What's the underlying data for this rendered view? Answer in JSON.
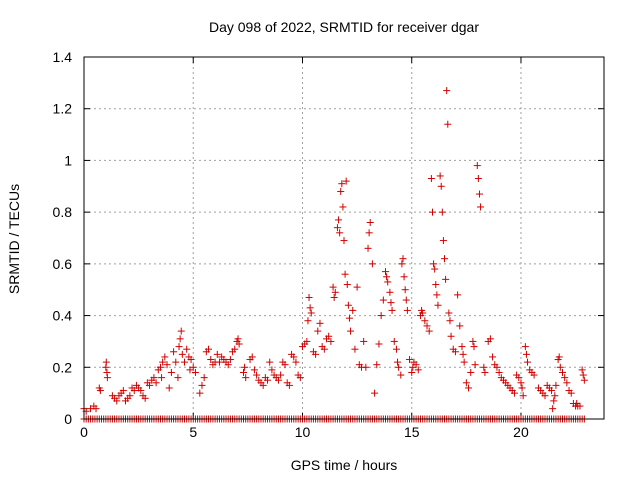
{
  "chart_data": {
    "type": "scatter",
    "title": "Day 098 of 2022, SRMTID for receiver dgar",
    "xlabel": "GPS time / hours",
    "ylabel": "SRMTID / TECUs",
    "xlim": [
      0,
      23.8
    ],
    "ylim": [
      0,
      1.4
    ],
    "xticks": [
      0,
      5,
      10,
      15,
      20
    ],
    "yticks": [
      0,
      0.2,
      0.4,
      0.6,
      0.8,
      1,
      1.2,
      1.4
    ],
    "xtick_labels": [
      "0",
      "5",
      "10",
      "15",
      "20"
    ],
    "ytick_labels": [
      "0",
      "0.2",
      "0.4",
      "0.6",
      "0.8",
      "1",
      "1.2",
      "1.4"
    ],
    "marker": "+",
    "color": "#d00000",
    "grid": true,
    "series": [
      {
        "name": "SRMTID",
        "points": [
          [
            0.0,
            0.04
          ],
          [
            0.1,
            0.03
          ],
          [
            0.3,
            0.04
          ],
          [
            0.45,
            0.05
          ],
          [
            0.55,
            0.04
          ],
          [
            0.7,
            0.12
          ],
          [
            0.75,
            0.11
          ],
          [
            1.0,
            0.2
          ],
          [
            1.02,
            0.22
          ],
          [
            1.05,
            0.18
          ],
          [
            1.07,
            0.16
          ],
          [
            1.3,
            0.09
          ],
          [
            1.4,
            0.08
          ],
          [
            1.5,
            0.07
          ],
          [
            1.6,
            0.09
          ],
          [
            1.7,
            0.1
          ],
          [
            1.8,
            0.11
          ],
          [
            1.9,
            0.07
          ],
          [
            2.0,
            0.08
          ],
          [
            2.1,
            0.09
          ],
          [
            2.2,
            0.12
          ],
          [
            2.3,
            0.11
          ],
          [
            2.4,
            0.13
          ],
          [
            2.5,
            0.12
          ],
          [
            2.6,
            0.11
          ],
          [
            2.7,
            0.09
          ],
          [
            2.8,
            0.08
          ],
          [
            2.9,
            0.14
          ],
          [
            3.0,
            0.13
          ],
          [
            3.1,
            0.15
          ],
          [
            3.2,
            0.16
          ],
          [
            3.3,
            0.14
          ],
          [
            3.4,
            0.19
          ],
          [
            3.5,
            0.2
          ],
          [
            3.55,
            0.16
          ],
          [
            3.6,
            0.22
          ],
          [
            3.7,
            0.24
          ],
          [
            3.8,
            0.21
          ],
          [
            3.9,
            0.12
          ],
          [
            4.0,
            0.18
          ],
          [
            4.1,
            0.26
          ],
          [
            4.2,
            0.22
          ],
          [
            4.3,
            0.16
          ],
          [
            4.35,
            0.28
          ],
          [
            4.4,
            0.31
          ],
          [
            4.45,
            0.34
          ],
          [
            4.5,
            0.25
          ],
          [
            4.6,
            0.22
          ],
          [
            4.7,
            0.27
          ],
          [
            4.8,
            0.24
          ],
          [
            4.85,
            0.19
          ],
          [
            4.9,
            0.23
          ],
          [
            5.0,
            0.2
          ],
          [
            5.1,
            0.18
          ],
          [
            5.3,
            0.1
          ],
          [
            5.4,
            0.13
          ],
          [
            5.5,
            0.16
          ],
          [
            5.6,
            0.26
          ],
          [
            5.7,
            0.27
          ],
          [
            5.8,
            0.23
          ],
          [
            5.9,
            0.21
          ],
          [
            6.0,
            0.22
          ],
          [
            6.1,
            0.25
          ],
          [
            6.2,
            0.22
          ],
          [
            6.3,
            0.24
          ],
          [
            6.4,
            0.23
          ],
          [
            6.5,
            0.22
          ],
          [
            6.6,
            0.21
          ],
          [
            6.7,
            0.23
          ],
          [
            6.8,
            0.26
          ],
          [
            6.9,
            0.27
          ],
          [
            7.0,
            0.3
          ],
          [
            7.05,
            0.31
          ],
          [
            7.1,
            0.29
          ],
          [
            7.3,
            0.18
          ],
          [
            7.35,
            0.2
          ],
          [
            7.4,
            0.16
          ],
          [
            7.6,
            0.23
          ],
          [
            7.7,
            0.24
          ],
          [
            7.8,
            0.19
          ],
          [
            7.9,
            0.17
          ],
          [
            8.0,
            0.15
          ],
          [
            8.1,
            0.14
          ],
          [
            8.2,
            0.13
          ],
          [
            8.3,
            0.16
          ],
          [
            8.4,
            0.15
          ],
          [
            8.5,
            0.22
          ],
          [
            8.6,
            0.19
          ],
          [
            8.7,
            0.17
          ],
          [
            8.8,
            0.16
          ],
          [
            8.9,
            0.15
          ],
          [
            9.0,
            0.17
          ],
          [
            9.1,
            0.22
          ],
          [
            9.2,
            0.21
          ],
          [
            9.3,
            0.14
          ],
          [
            9.4,
            0.13
          ],
          [
            9.5,
            0.25
          ],
          [
            9.6,
            0.24
          ],
          [
            9.7,
            0.22
          ],
          [
            9.8,
            0.17
          ],
          [
            9.9,
            0.16
          ],
          [
            10.0,
            0.28
          ],
          [
            10.1,
            0.29
          ],
          [
            10.2,
            0.3
          ],
          [
            10.25,
            0.38
          ],
          [
            10.3,
            0.47
          ],
          [
            10.35,
            0.43
          ],
          [
            10.4,
            0.41
          ],
          [
            10.5,
            0.26
          ],
          [
            10.6,
            0.25
          ],
          [
            10.7,
            0.34
          ],
          [
            10.8,
            0.37
          ],
          [
            10.9,
            0.28
          ],
          [
            11.0,
            0.27
          ],
          [
            11.1,
            0.31
          ],
          [
            11.2,
            0.32
          ],
          [
            11.3,
            0.3
          ],
          [
            11.4,
            0.51
          ],
          [
            11.45,
            0.47
          ],
          [
            11.5,
            0.49
          ],
          [
            11.6,
            0.74
          ],
          [
            11.65,
            0.77
          ],
          [
            11.7,
            0.72
          ],
          [
            11.75,
            0.88
          ],
          [
            11.8,
            0.91
          ],
          [
            11.85,
            0.82
          ],
          [
            11.9,
            0.69
          ],
          [
            11.95,
            0.56
          ],
          [
            12.0,
            0.92
          ],
          [
            12.05,
            0.52
          ],
          [
            12.1,
            0.44
          ],
          [
            12.15,
            0.39
          ],
          [
            12.2,
            0.34
          ],
          [
            12.3,
            0.42
          ],
          [
            12.4,
            0.27
          ],
          [
            12.5,
            0.51
          ],
          [
            12.6,
            0.21
          ],
          [
            12.7,
            0.2
          ],
          [
            12.8,
            0.3
          ],
          [
            12.9,
            0.2
          ],
          [
            13.0,
            0.66
          ],
          [
            13.05,
            0.72
          ],
          [
            13.1,
            0.76
          ],
          [
            13.2,
            0.6
          ],
          [
            13.3,
            0.1
          ],
          [
            13.4,
            0.21
          ],
          [
            13.5,
            0.29
          ],
          [
            13.6,
            0.4
          ],
          [
            13.7,
            0.46
          ],
          [
            13.8,
            0.57
          ],
          [
            13.85,
            0.55
          ],
          [
            13.9,
            0.53
          ],
          [
            14.0,
            0.49
          ],
          [
            14.05,
            0.45
          ],
          [
            14.1,
            0.42
          ],
          [
            14.2,
            0.3
          ],
          [
            14.3,
            0.27
          ],
          [
            14.35,
            0.22
          ],
          [
            14.4,
            0.2
          ],
          [
            14.5,
            0.17
          ],
          [
            14.55,
            0.6
          ],
          [
            14.6,
            0.62
          ],
          [
            14.65,
            0.55
          ],
          [
            14.7,
            0.5
          ],
          [
            14.75,
            0.46
          ],
          [
            14.8,
            0.42
          ],
          [
            14.9,
            0.23
          ],
          [
            15.0,
            0.18
          ],
          [
            15.05,
            0.2
          ],
          [
            15.1,
            0.22
          ],
          [
            15.2,
            0.21
          ],
          [
            15.3,
            0.19
          ],
          [
            15.4,
            0.4
          ],
          [
            15.45,
            0.42
          ],
          [
            15.5,
            0.41
          ],
          [
            15.6,
            0.38
          ],
          [
            15.7,
            0.36
          ],
          [
            15.8,
            0.34
          ],
          [
            15.9,
            0.93
          ],
          [
            15.95,
            0.8
          ],
          [
            16.0,
            0.6
          ],
          [
            16.05,
            0.58
          ],
          [
            16.1,
            0.52
          ],
          [
            16.15,
            0.48
          ],
          [
            16.2,
            0.44
          ],
          [
            16.3,
            0.94
          ],
          [
            16.35,
            0.9
          ],
          [
            16.4,
            0.8
          ],
          [
            16.45,
            0.69
          ],
          [
            16.5,
            0.62
          ],
          [
            16.55,
            0.54
          ],
          [
            16.6,
            1.27
          ],
          [
            16.65,
            1.14
          ],
          [
            16.7,
            0.41
          ],
          [
            16.75,
            0.38
          ],
          [
            16.8,
            0.32
          ],
          [
            16.9,
            0.27
          ],
          [
            17.0,
            0.26
          ],
          [
            17.1,
            0.48
          ],
          [
            17.2,
            0.36
          ],
          [
            17.3,
            0.28
          ],
          [
            17.35,
            0.25
          ],
          [
            17.4,
            0.22
          ],
          [
            17.5,
            0.14
          ],
          [
            17.6,
            0.12
          ],
          [
            17.7,
            0.18
          ],
          [
            17.8,
            0.3
          ],
          [
            17.85,
            0.28
          ],
          [
            17.9,
            0.21
          ],
          [
            18.0,
            0.98
          ],
          [
            18.05,
            0.93
          ],
          [
            18.1,
            0.87
          ],
          [
            18.15,
            0.82
          ],
          [
            18.3,
            0.2
          ],
          [
            18.35,
            0.18
          ],
          [
            18.5,
            0.3
          ],
          [
            18.6,
            0.31
          ],
          [
            18.7,
            0.24
          ],
          [
            18.8,
            0.21
          ],
          [
            18.9,
            0.2
          ],
          [
            19.0,
            0.18
          ],
          [
            19.1,
            0.16
          ],
          [
            19.2,
            0.15
          ],
          [
            19.3,
            0.14
          ],
          [
            19.4,
            0.13
          ],
          [
            19.5,
            0.12
          ],
          [
            19.6,
            0.11
          ],
          [
            19.7,
            0.1
          ],
          [
            19.8,
            0.17
          ],
          [
            19.9,
            0.16
          ],
          [
            20.0,
            0.14
          ],
          [
            20.05,
            0.12
          ],
          [
            20.1,
            0.09
          ],
          [
            20.2,
            0.28
          ],
          [
            20.25,
            0.25
          ],
          [
            20.3,
            0.22
          ],
          [
            20.4,
            0.19
          ],
          [
            20.5,
            0.18
          ],
          [
            20.6,
            0.17
          ],
          [
            20.8,
            0.12
          ],
          [
            20.9,
            0.11
          ],
          [
            21.0,
            0.1
          ],
          [
            21.1,
            0.09
          ],
          [
            21.2,
            0.13
          ],
          [
            21.3,
            0.12
          ],
          [
            21.4,
            0.11
          ],
          [
            21.45,
            0.04
          ],
          [
            21.5,
            0.07
          ],
          [
            21.55,
            0.09
          ],
          [
            21.6,
            0.13
          ],
          [
            21.7,
            0.23
          ],
          [
            21.75,
            0.24
          ],
          [
            21.8,
            0.2
          ],
          [
            21.9,
            0.18
          ],
          [
            22.0,
            0.16
          ],
          [
            22.1,
            0.14
          ],
          [
            22.2,
            0.11
          ],
          [
            22.3,
            0.1
          ],
          [
            22.4,
            0.06
          ],
          [
            22.5,
            0.05
          ],
          [
            22.55,
            0.06
          ],
          [
            22.6,
            0.05
          ],
          [
            22.7,
            0.05
          ],
          [
            22.8,
            0.19
          ],
          [
            22.85,
            0.17
          ],
          [
            22.9,
            0.15
          ]
        ],
        "baseline": {
          "y": 0,
          "x_start": 0,
          "x_end": 22.9,
          "x_step": 0.1
        }
      }
    ]
  }
}
